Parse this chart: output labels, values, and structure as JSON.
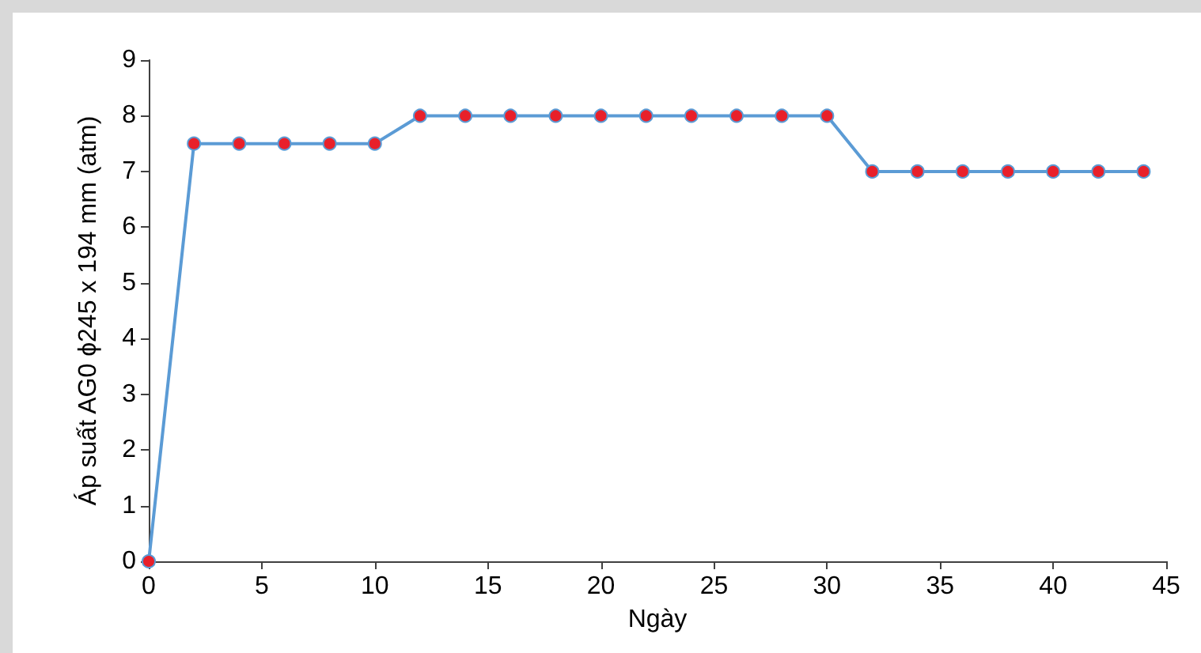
{
  "chart_data": {
    "type": "line",
    "xlabel": "Ngày",
    "ylabel": "Áp suất AG0 ϕ245 x 194 mm (atm)",
    "x": [
      0,
      2,
      4,
      6,
      8,
      10,
      12,
      14,
      16,
      18,
      20,
      22,
      24,
      26,
      28,
      30,
      32,
      34,
      36,
      38,
      40,
      42,
      44
    ],
    "series": [
      {
        "color": "#5b9bd5",
        "colors": [
          "#e8202a",
          "#e8202a",
          "#e8202a",
          "#e8202a",
          "#e8202a",
          "#e8202a",
          "#e8202a",
          "#e8202a",
          "#e8202a",
          "#e8202a",
          "#e8202a",
          "#e8202a",
          "#e8202a",
          "#e8202a",
          "#e8202a",
          "#e8202a",
          "#e8202a",
          "#e8202a",
          "#e8202a",
          "#e8202a",
          "#e8202a",
          "#e8202a",
          "#e8202a"
        ],
        "values": [
          0,
          7.5,
          7.5,
          7.5,
          7.5,
          7.5,
          8,
          8,
          8,
          8,
          8,
          8,
          8,
          8,
          8,
          8,
          7,
          7,
          7,
          7,
          7,
          7,
          7
        ]
      }
    ],
    "xlim": [
      0,
      45
    ],
    "xticks": [
      0,
      5,
      10,
      15,
      20,
      25,
      30,
      35,
      40,
      45
    ],
    "ylim": [
      0,
      9
    ],
    "yticks": [
      0,
      1,
      2,
      3,
      4,
      5,
      6,
      7,
      8,
      9
    ],
    "grid": false,
    "marker": "circle",
    "line_style": "solid"
  }
}
